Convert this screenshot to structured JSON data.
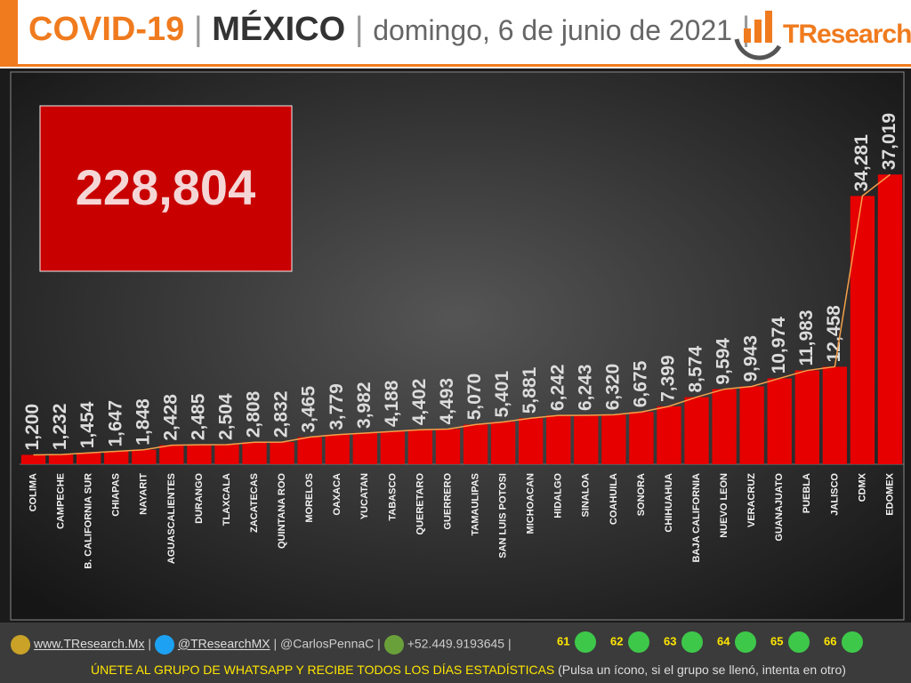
{
  "header": {
    "title": "COVID-19",
    "separator": "|",
    "country": "MÉXICO",
    "date": "domingo, 6 de junio de 2021",
    "logo": "TResearch"
  },
  "total_label": "228,804",
  "chart_data": {
    "type": "bar",
    "categories": [
      "COLIMA",
      "CAMPECHE",
      "B. CALIFORNIA SUR",
      "CHIAPAS",
      "NAYARIT",
      "AGUASCALIENTES",
      "DURANGO",
      "TLAXCALA",
      "ZACATECAS",
      "QUINTANA ROO",
      "MORELOS",
      "OAXACA",
      "YUCATAN",
      "TABASCO",
      "QUERETARO",
      "GUERRERO",
      "TAMAULIPAS",
      "SAN LUIS POTOSI",
      "MICHOACAN",
      "HIDALGO",
      "SINALOA",
      "COAHUILA",
      "SONORA",
      "CHIHUAHUA",
      "BAJA CALIFORNIA",
      "NUEVO LEON",
      "VERACRUZ",
      "GUANAJUATO",
      "PUEBLA",
      "JALISCO",
      "CDMX",
      "EDOMEX"
    ],
    "values": [
      1200,
      1232,
      1454,
      1647,
      1848,
      2428,
      2485,
      2504,
      2808,
      2832,
      3465,
      3779,
      3982,
      4188,
      4402,
      4493,
      5070,
      5401,
      5881,
      6242,
      6243,
      6320,
      6675,
      7399,
      8574,
      9594,
      9943,
      10974,
      11983,
      12458,
      34281,
      37019
    ],
    "value_labels": [
      "1,200",
      "1,232",
      "1,454",
      "1,647",
      "1,848",
      "2,428",
      "2,485",
      "2,504",
      "2,808",
      "2,832",
      "3,465",
      "3,779",
      "3,982",
      "4,188",
      "4,402",
      "4,493",
      "5,070",
      "5,401",
      "5,881",
      "6,242",
      "6,243",
      "6,320",
      "6,675",
      "7,399",
      "8,574",
      "9,594",
      "9,943",
      "10,974",
      "11,983",
      "12,458",
      "34,281",
      "37,019"
    ],
    "color": "#e60000",
    "line_color": "#f5a04a",
    "trendline": true,
    "ylim": [
      0,
      40000
    ]
  },
  "footer": {
    "website": "www.TResearch.Mx",
    "twitter": "@TResearchMX",
    "personal": "@CarlosPennaC",
    "phone": "+52.449.9193645",
    "groups": [
      "61",
      "62",
      "63",
      "64",
      "65",
      "66"
    ],
    "cta": "ÚNETE AL GRUPO DE WHATSAPP Y RECIBE TODOS LOS DÍAS ESTADÍSTICAS",
    "note": "(Pulsa un ícono, si el grupo se llenó, intenta en otro)"
  }
}
